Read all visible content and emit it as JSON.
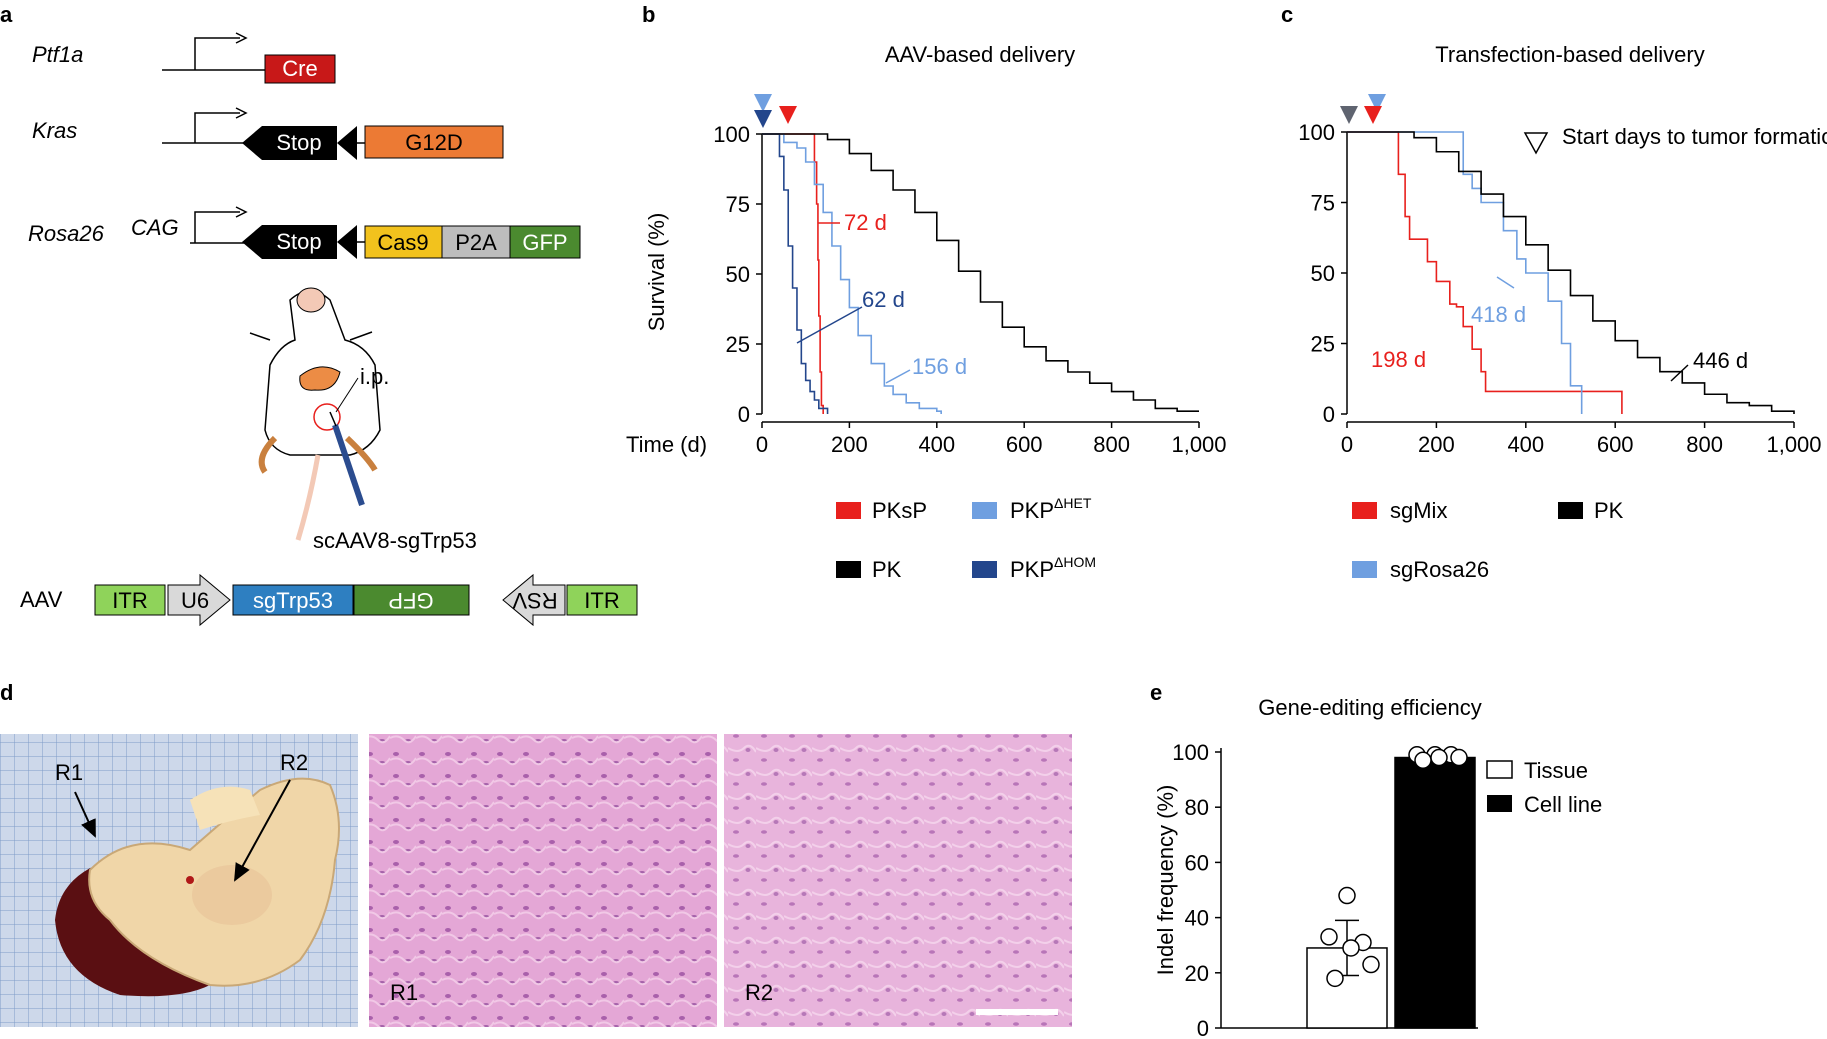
{
  "colors": {
    "red": "#e8201d",
    "light_blue": "#6f9fe0",
    "dark_blue": "#23468c",
    "black": "#000000",
    "gray_marker": "#5f6470",
    "cre": "#c81818",
    "g12d": "#ec7a34",
    "cas9": "#f2c21d",
    "p2a": "#bdbdbd",
    "gfp": "#4b8a2f",
    "itr": "#8fd35a",
    "sgtrp53": "#2e7fc1",
    "he_stain": "#e2a8d4"
  },
  "panel_a": {
    "letter": "a",
    "genes": [
      {
        "name": "Ptf1a",
        "blocks": [
          "Cre"
        ]
      },
      {
        "name": "Kras",
        "blocks": [
          "Stop",
          "G12D"
        ]
      },
      {
        "name": "Rosa26",
        "promoter": "CAG",
        "blocks": [
          "Stop",
          "Cas9",
          "P2A",
          "GFP"
        ]
      }
    ],
    "injection_label": "i.p.",
    "virus_label": "scAAV8-sgTrp53",
    "aav_label": "AAV",
    "aav_elements": [
      "ITR",
      "U6",
      "sgTrp53",
      "GFP",
      "RSV",
      "ITR"
    ],
    "mouse_icon": "mouse-illustration"
  },
  "panel_b": {
    "letter": "b",
    "title": "AAV-based delivery",
    "ylabel": "Survival (%)",
    "xlabel": "Time (d)",
    "yticks": [
      "0",
      "25",
      "50",
      "75",
      "100"
    ],
    "xticks": [
      "0",
      "200",
      "400",
      "600",
      "800",
      "1,000"
    ],
    "annotations": [
      "72 d",
      "62 d",
      "156 d"
    ],
    "legend": [
      {
        "label": "PKsP",
        "sup": "",
        "color": "#e8201d"
      },
      {
        "label": "PKP",
        "sup": "ΔHET",
        "color": "#6f9fe0"
      },
      {
        "label": "PK",
        "sup": "",
        "color": "#000000"
      },
      {
        "label": "PKP",
        "sup": "ΔHOM",
        "color": "#23468c"
      }
    ]
  },
  "panel_c": {
    "letter": "c",
    "title": "Transfection-based delivery",
    "yticks": [
      "0",
      "25",
      "50",
      "75",
      "100"
    ],
    "xticks": [
      "0",
      "200",
      "400",
      "600",
      "800",
      "1,000"
    ],
    "annotations": [
      "418 d",
      "198 d",
      "446 d"
    ],
    "marker_note": "Start days to tumor formation (median)",
    "legend": [
      {
        "label": "sgMix",
        "color": "#e8201d"
      },
      {
        "label": "PK",
        "color": "#000000"
      },
      {
        "label": "sgRosa26",
        "color": "#6f9fe0"
      }
    ]
  },
  "panel_d": {
    "letter": "d",
    "photo_labels": [
      "R1",
      "R2"
    ],
    "histology_labels": [
      "R1",
      "R2"
    ]
  },
  "panel_e": {
    "letter": "e",
    "title": "Gene-editing efficiency",
    "ylabel": "Indel frequency (%)",
    "yticks": [
      "0",
      "20",
      "40",
      "60",
      "80",
      "100"
    ],
    "legend": [
      "Tissue",
      "Cell line"
    ]
  },
  "chart_data": [
    {
      "type": "line",
      "title": "AAV-based delivery",
      "xlabel": "Time (d)",
      "ylabel": "Survival (%)",
      "xlim": [
        0,
        1000
      ],
      "ylim": [
        0,
        100
      ],
      "series": [
        {
          "name": "PKsP",
          "color": "#e8201d",
          "x": [
            0,
            115,
            120,
            125,
            128,
            130,
            133,
            136,
            140
          ],
          "y": [
            100,
            100,
            90,
            75,
            55,
            35,
            15,
            3,
            0
          ]
        },
        {
          "name": "PKP ΔHOM",
          "color": "#23468c",
          "x": [
            0,
            20,
            40,
            50,
            60,
            70,
            80,
            90,
            100,
            110,
            120,
            130,
            150
          ],
          "y": [
            100,
            100,
            92,
            80,
            60,
            45,
            30,
            18,
            12,
            8,
            5,
            2,
            0
          ]
        },
        {
          "name": "PKP ΔHET",
          "color": "#6f9fe0",
          "x": [
            0,
            30,
            50,
            80,
            100,
            120,
            140,
            160,
            180,
            200,
            220,
            250,
            280,
            300,
            330,
            360,
            400,
            410
          ],
          "y": [
            100,
            100,
            97,
            95,
            90,
            82,
            72,
            60,
            48,
            38,
            28,
            18,
            10,
            7,
            4,
            2,
            1,
            0
          ]
        },
        {
          "name": "PK",
          "color": "#000000",
          "x": [
            0,
            100,
            150,
            200,
            250,
            300,
            350,
            400,
            450,
            500,
            550,
            600,
            650,
            700,
            750,
            800,
            850,
            900,
            950,
            1000
          ],
          "y": [
            100,
            100,
            98,
            93,
            87,
            80,
            72,
            62,
            51,
            40,
            31,
            24,
            19,
            15,
            11,
            8,
            5,
            2,
            1,
            1
          ]
        }
      ]
    },
    {
      "type": "line",
      "title": "Transfection-based delivery",
      "xlim": [
        0,
        1000
      ],
      "ylim": [
        0,
        100
      ],
      "series": [
        {
          "name": "sgMix",
          "color": "#e8201d",
          "x": [
            0,
            100,
            115,
            130,
            140,
            180,
            200,
            230,
            245,
            260,
            280,
            300,
            310,
            400,
            500,
            610,
            615
          ],
          "y": [
            100,
            100,
            85,
            70,
            62,
            54,
            47,
            39,
            38,
            31,
            23,
            15,
            8,
            8,
            8,
            8,
            0
          ]
        },
        {
          "name": "sgRosa26",
          "color": "#6f9fe0",
          "x": [
            0,
            250,
            260,
            280,
            300,
            320,
            350,
            380,
            400,
            430,
            450,
            480,
            500,
            520,
            525
          ],
          "y": [
            100,
            100,
            85,
            80,
            75,
            75,
            65,
            55,
            50,
            50,
            40,
            25,
            10,
            10,
            0
          ]
        },
        {
          "name": "PK",
          "color": "#000000",
          "x": [
            0,
            100,
            150,
            200,
            250,
            300,
            350,
            400,
            450,
            500,
            550,
            600,
            650,
            700,
            750,
            800,
            850,
            900,
            950,
            1000
          ],
          "y": [
            100,
            100,
            98,
            93,
            86,
            78,
            70,
            60,
            51,
            42,
            33,
            26,
            20,
            15,
            11,
            7,
            4,
            3,
            1,
            0
          ]
        }
      ]
    },
    {
      "type": "bar",
      "title": "Gene-editing efficiency",
      "ylabel": "Indel frequency (%)",
      "ylim": [
        0,
        100
      ],
      "categories": [
        "Tissue",
        "Cell line"
      ],
      "values": [
        29,
        98
      ],
      "errors": [
        10,
        1
      ],
      "points": [
        [
          48,
          33,
          31,
          29,
          23,
          18
        ],
        [
          99,
          99,
          99,
          98,
          98,
          97
        ]
      ]
    }
  ]
}
